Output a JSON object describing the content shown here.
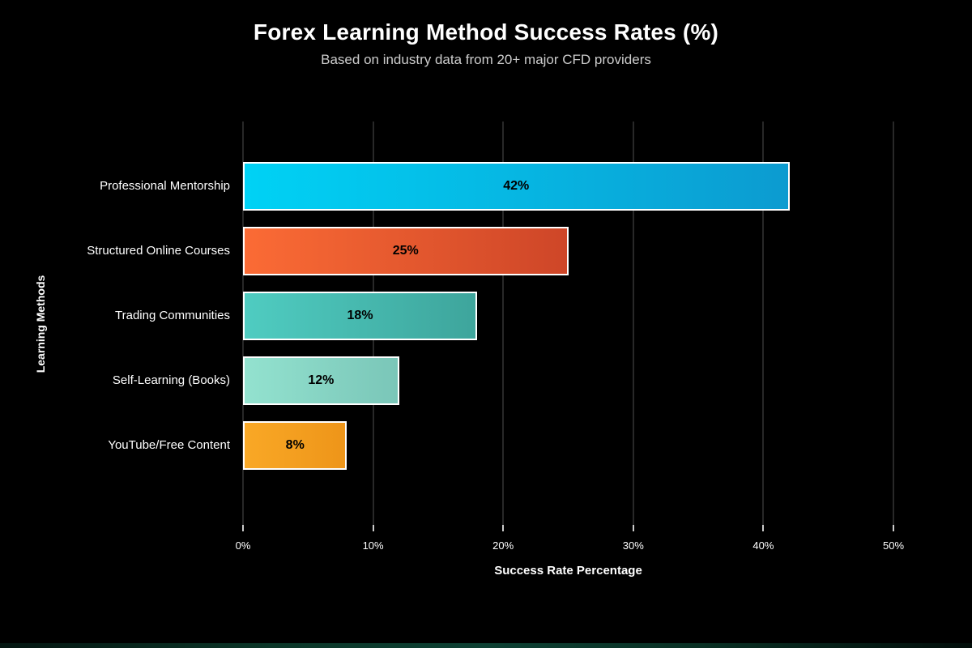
{
  "chart_data": {
    "type": "bar",
    "orientation": "horizontal",
    "title": "Forex Learning Method Success Rates (%)",
    "subtitle": "Based on industry data from 20+ major CFD providers",
    "xlabel": "Success Rate Percentage",
    "ylabel": "Learning Methods",
    "categories": [
      "Professional Mentorship",
      "Structured Online Courses",
      "Trading Communities",
      "Self-Learning (Books)",
      "YouTube/Free Content"
    ],
    "values": [
      42,
      25,
      18,
      12,
      8
    ],
    "value_labels": [
      "42%",
      "25%",
      "18%",
      "12%",
      "8%"
    ],
    "xlim": [
      0,
      50
    ],
    "xtick_values": [
      0,
      10,
      20,
      30,
      40,
      50
    ],
    "xtick_labels": [
      "0%",
      "10%",
      "20%",
      "30%",
      "40%",
      "50%"
    ],
    "grid": true,
    "legend": false,
    "bar_gradients": [
      {
        "from": "#00D2F5",
        "to": "#0C9BD0"
      },
      {
        "from": "#FB6B35",
        "to": "#CE4628"
      },
      {
        "from": "#4FCCC1",
        "to": "#3EA59C"
      },
      {
        "from": "#93E2CF",
        "to": "#7AC6B8"
      },
      {
        "from": "#F9A826",
        "to": "#EE9519"
      }
    ]
  },
  "colors": {
    "background": "#000000",
    "grid": "#282828",
    "bar_border": "#ffffff",
    "title_text": "#ffffff",
    "subtitle_text": "#cccccc",
    "tick_text": "#ffffff",
    "value_label_text": "#000000"
  }
}
